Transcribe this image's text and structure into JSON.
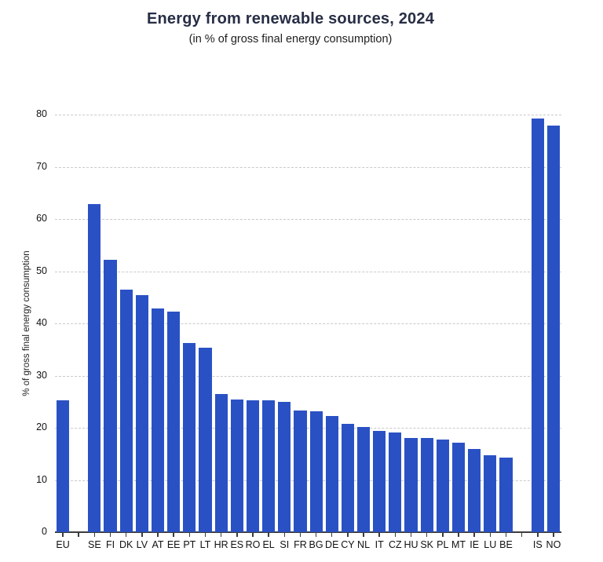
{
  "chart_data": {
    "type": "bar",
    "title": "Energy from renewable sources, 2024",
    "subtitle": "(in % of gross final energy consumption)",
    "xlabel": "",
    "ylabel": "% of gross final energy consumption",
    "ylim": [
      0,
      80
    ],
    "yticks": [
      0,
      10,
      20,
      30,
      40,
      50,
      60,
      70,
      80
    ],
    "grid": "horizontal-dashed",
    "legend_position": "none",
    "bar_color": "#2a51c4",
    "categories": [
      "EU",
      "SE",
      "FI",
      "DK",
      "LV",
      "AT",
      "EE",
      "PT",
      "LT",
      "HR",
      "ES",
      "RO",
      "EL",
      "SI",
      "FR",
      "BG",
      "DE",
      "CY",
      "NL",
      "IT",
      "CZ",
      "HU",
      "SK",
      "PL",
      "MT",
      "IE",
      "LU",
      "BE",
      "IS",
      "NO"
    ],
    "values": [
      25.2,
      62.8,
      52.2,
      46.4,
      45.4,
      42.9,
      42.2,
      36.3,
      35.4,
      26.4,
      25.4,
      25.3,
      25.3,
      24.9,
      23.3,
      23.2,
      22.3,
      20.8,
      20.1,
      19.4,
      19.1,
      18.1,
      18.0,
      17.7,
      17.1,
      15.9,
      14.8,
      14.3,
      79.3,
      77.9
    ],
    "gap_after": [
      0,
      27
    ]
  },
  "colors": {
    "bar": "#2a51c4",
    "title_text": "#272e45",
    "gridline": "#c9c9c9",
    "axis": "#3c3c3c"
  }
}
